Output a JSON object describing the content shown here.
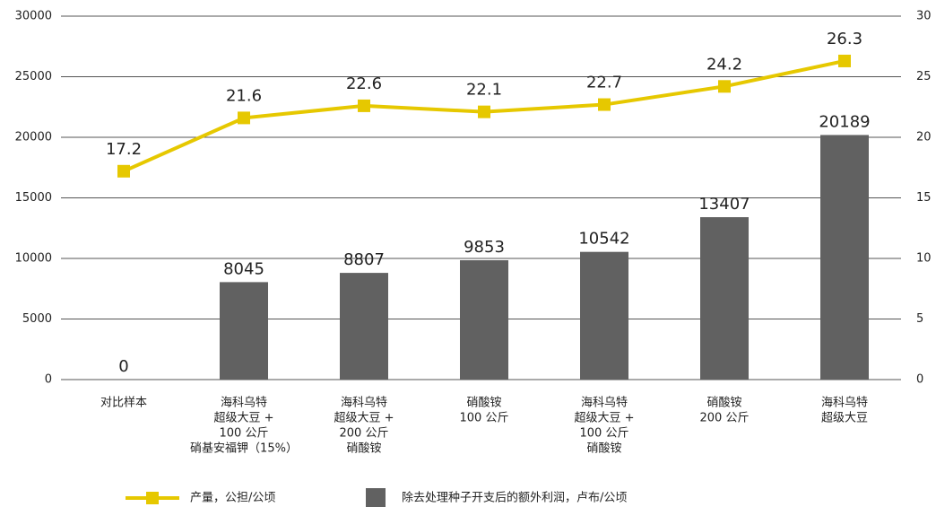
{
  "chart_data": {
    "type": "bar-line",
    "categories": [
      [
        "对比样本"
      ],
      [
        "海科乌特",
        "超级大豆 +",
        "100 公斤",
        "硝基安福钾（15%）"
      ],
      [
        "海科乌特",
        "超级大豆 +",
        "200 公斤",
        "硝酸铵"
      ],
      [
        "硝酸铵",
        "100 公斤"
      ],
      [
        "海科乌特",
        "超级大豆 +",
        "100 公斤",
        "硝酸铵"
      ],
      [
        "硝酸铵",
        "200 公斤"
      ],
      [
        "海科乌特",
        "超级大豆"
      ]
    ],
    "series": [
      {
        "name": "产量，公担/公顷",
        "type": "line",
        "axis": "y2",
        "color": "#e6c800",
        "values": [
          17.2,
          21.6,
          22.6,
          22.1,
          22.7,
          24.2,
          26.3
        ]
      },
      {
        "name": "除去处理种子开支后的额外利润，卢布/公顷",
        "type": "bar",
        "color": "#616161",
        "values": [
          0,
          8045,
          8807,
          9853,
          10542,
          13407,
          20189
        ]
      }
    ],
    "ylim": [
      0,
      30000
    ],
    "yticks": [
      0,
      5000,
      10000,
      15000,
      20000,
      25000,
      30000
    ],
    "y2lim": [
      0,
      30
    ],
    "y2ticks": [
      0,
      5,
      10,
      15,
      20,
      25,
      30
    ],
    "grid": true,
    "legend": "bottom"
  }
}
